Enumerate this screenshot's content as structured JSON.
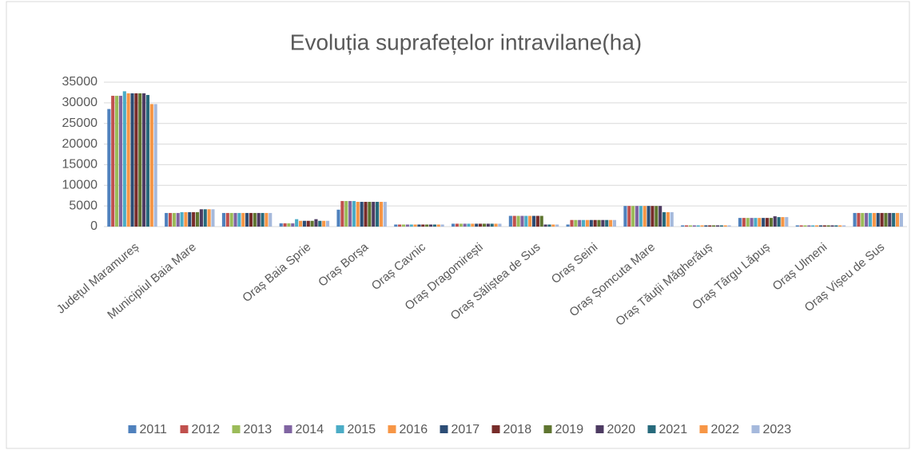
{
  "chart_data": {
    "type": "bar",
    "title": "Evoluția suprafețelor intravilane(ha)",
    "categories": [
      "Județul Maramureș",
      "Municipiul Baia Mare",
      null,
      "Oraș Baia Sprie",
      "Oraș Borșa",
      "Oraș Cavnic",
      "Oraș Dragomirești",
      "Oraș Săliștea de Sus",
      "Oraș Seini",
      "Oraș Șomcuta Mare",
      "Oraș Tăuții Măgherăuș",
      "Oraș Târgu Lăpuș",
      "Oraș Ulmeni",
      "Oraș Vișeu de Sus"
    ],
    "series": [
      {
        "name": "2011",
        "color": "#4f81bd",
        "values": [
          28500,
          3300,
          3300,
          800,
          4100,
          500,
          700,
          2600,
          500,
          5000,
          300,
          2100,
          300,
          3300
        ]
      },
      {
        "name": "2012",
        "color": "#c0504d",
        "values": [
          31700,
          3300,
          3300,
          800,
          6200,
          500,
          700,
          2600,
          1600,
          5000,
          300,
          2100,
          300,
          3300
        ]
      },
      {
        "name": "2013",
        "color": "#9bbb59",
        "values": [
          31700,
          3300,
          3300,
          800,
          6200,
          500,
          700,
          2600,
          1600,
          5000,
          300,
          2100,
          300,
          3300
        ]
      },
      {
        "name": "2014",
        "color": "#8064a2",
        "values": [
          31700,
          3300,
          3300,
          800,
          6200,
          500,
          700,
          2600,
          1600,
          5000,
          300,
          2100,
          300,
          3300
        ]
      },
      {
        "name": "2015",
        "color": "#4bacc6",
        "values": [
          32800,
          3500,
          3300,
          1800,
          6200,
          500,
          700,
          2600,
          1600,
          5000,
          300,
          2100,
          300,
          3300
        ]
      },
      {
        "name": "2016",
        "color": "#f79646",
        "values": [
          32300,
          3500,
          3300,
          1400,
          6000,
          500,
          700,
          2600,
          1600,
          5000,
          300,
          2100,
          300,
          3300
        ]
      },
      {
        "name": "2017",
        "color": "#2c4d75",
        "values": [
          32300,
          3500,
          3300,
          1400,
          6000,
          500,
          700,
          2600,
          1600,
          5000,
          300,
          2100,
          300,
          3300
        ]
      },
      {
        "name": "2018",
        "color": "#772c2a",
        "values": [
          32300,
          3500,
          3300,
          1400,
          6000,
          500,
          700,
          2600,
          1600,
          5000,
          300,
          2100,
          300,
          3300
        ]
      },
      {
        "name": "2019",
        "color": "#5f7530",
        "values": [
          32300,
          3500,
          3300,
          1400,
          6000,
          500,
          700,
          2600,
          1600,
          5000,
          300,
          2100,
          300,
          3300
        ]
      },
      {
        "name": "2020",
        "color": "#4d3b62",
        "values": [
          32300,
          4200,
          3300,
          1800,
          6000,
          500,
          700,
          500,
          1600,
          5000,
          300,
          2500,
          300,
          3300
        ]
      },
      {
        "name": "2021",
        "color": "#276a7c",
        "values": [
          31900,
          4200,
          3300,
          1400,
          6000,
          500,
          700,
          500,
          1600,
          3500,
          300,
          2300,
          300,
          3300
        ]
      },
      {
        "name": "2022",
        "color": "#f79646",
        "values": [
          29700,
          4200,
          3300,
          1400,
          6000,
          500,
          700,
          500,
          1600,
          3500,
          300,
          2300,
          300,
          3300
        ]
      },
      {
        "name": "2023",
        "color": "#a5b9dc",
        "values": [
          29700,
          4200,
          3300,
          1400,
          6000,
          500,
          700,
          500,
          1600,
          3500,
          300,
          2300,
          300,
          3300
        ]
      }
    ],
    "ylim": [
      0,
      35000
    ],
    "yticks": [
      0,
      5000,
      10000,
      15000,
      20000,
      25000,
      30000,
      35000
    ],
    "grid": true,
    "legend": "bottom"
  }
}
